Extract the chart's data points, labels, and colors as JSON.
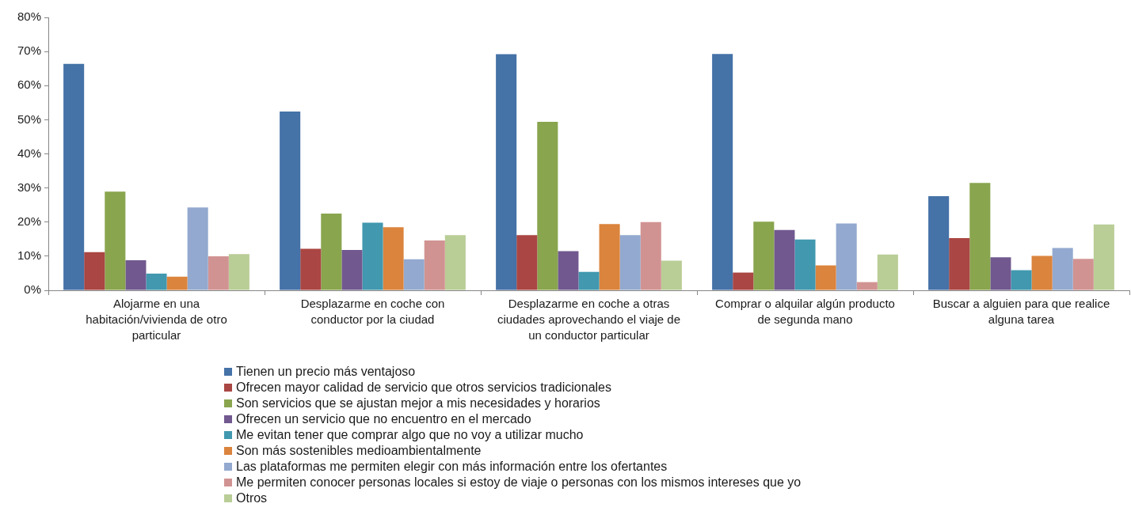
{
  "chart_data": {
    "type": "bar",
    "categories": [
      "Alojarme en una habitación/vivienda de otro particular",
      "Desplazarme en coche con conductor por la ciudad",
      "Desplazarme en coche a otras ciudades aprovechando el viaje de un conductor particular",
      "Comprar o alquilar algún producto de segunda mano",
      "Buscar a alguien para que realice alguna tarea"
    ],
    "series": [
      {
        "name": "Tienen un precio más ventajoso",
        "color": "#4572a7",
        "values": [
          66.4,
          52.4,
          69.2,
          69.3,
          27.6
        ]
      },
      {
        "name": "Ofrecen mayor calidad de servicio que otros servicios tradicionales",
        "color": "#aa4643",
        "values": [
          11.2,
          12.2,
          16.2,
          5.2,
          15.3
        ]
      },
      {
        "name": "Son servicios que se ajustan mejor a mis necesidades y horarios",
        "color": "#89a54e",
        "values": [
          28.9,
          22.5,
          49.4,
          20.1,
          31.5
        ]
      },
      {
        "name": "Ofrecen un servicio que no encuentro en el mercado",
        "color": "#71588f",
        "values": [
          8.8,
          11.8,
          11.5,
          17.7,
          9.7
        ]
      },
      {
        "name": "Me evitan tener que comprar algo que no voy a utilizar mucho",
        "color": "#4198af",
        "values": [
          4.9,
          19.8,
          5.4,
          14.9,
          5.9
        ]
      },
      {
        "name": "Son más sostenibles medioambientalmente",
        "color": "#db843d",
        "values": [
          4.0,
          18.5,
          19.4,
          7.3,
          10.1
        ]
      },
      {
        "name": "Las plataformas me permiten elegir con más información entre los ofertantes",
        "color": "#93a9cf",
        "values": [
          24.3,
          9.1,
          16.2,
          19.6,
          12.4
        ]
      },
      {
        "name": "Me permiten conocer personas locales si estoy de viaje o personas con los mismos intereses que yo",
        "color": "#d19392",
        "values": [
          10.0,
          14.6,
          20.0,
          2.4,
          9.2
        ]
      },
      {
        "name": "Otros",
        "color": "#b9cd96",
        "values": [
          10.6,
          16.2,
          8.7,
          10.5,
          19.3
        ]
      }
    ],
    "ylim": [
      0,
      80
    ],
    "yticks": [
      {
        "value": 0,
        "label": "0%"
      },
      {
        "value": 10,
        "label": "10%"
      },
      {
        "value": 20,
        "label": "20%"
      },
      {
        "value": 30,
        "label": "30%"
      },
      {
        "value": 40,
        "label": "40%"
      },
      {
        "value": 50,
        "label": "50%"
      },
      {
        "value": 60,
        "label": "60%"
      },
      {
        "value": 70,
        "label": "70%"
      },
      {
        "value": 80,
        "label": "80%"
      }
    ],
    "legend": "bottom"
  }
}
